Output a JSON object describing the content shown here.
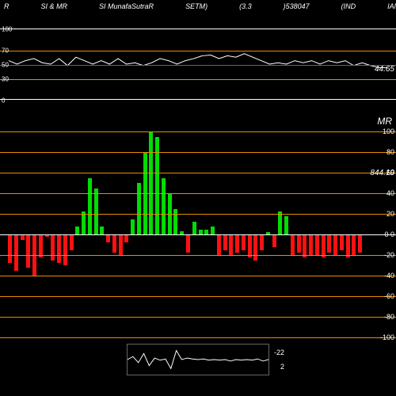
{
  "header": {
    "items": [
      "R",
      "SI & MR",
      "SI MunafaSutraR",
      "SETM)",
      "(3.3",
      ")538047",
      "(IND",
      "IAN"
    ]
  },
  "rsi": {
    "grid_color": "#e78c00",
    "levels": [
      100,
      70,
      50,
      30,
      0
    ],
    "last_label": "44.65",
    "line_color": "#ffffff",
    "points": [
      55,
      50,
      55,
      58,
      52,
      50,
      58,
      48,
      60,
      55,
      50,
      55,
      50,
      58,
      50,
      52,
      48,
      52,
      58,
      55,
      50,
      55,
      58,
      62,
      63,
      58,
      62,
      60,
      65,
      60,
      55,
      50,
      52,
      50,
      55,
      52,
      55,
      50,
      55,
      52,
      55,
      48,
      52,
      48,
      45,
      45
    ]
  },
  "mr": {
    "title": "MR",
    "grid_color": "#e78c00",
    "zero_color": "#ffffff",
    "levels": [
      100,
      80,
      60,
      40,
      20,
      0,
      -20,
      -40,
      -60,
      -80,
      -100
    ],
    "value_label": "844.19",
    "pos_color": "#00dd00",
    "neg_color": "#ff1111",
    "bars": [
      -28,
      -35,
      -5,
      -32,
      -40,
      -22,
      -2,
      -25,
      -28,
      -30,
      -15,
      8,
      22,
      55,
      45,
      8,
      -8,
      -18,
      -20,
      -8,
      15,
      50,
      80,
      100,
      95,
      55,
      40,
      25,
      3,
      -18,
      12,
      5,
      5,
      8,
      -20,
      -15,
      -20,
      -18,
      -15,
      -22,
      -25,
      -15,
      2,
      -12,
      22,
      18,
      -20,
      -18,
      -22,
      -20,
      -20,
      -22,
      -18,
      -20,
      -15,
      -22,
      -20,
      -18
    ]
  },
  "mini": {
    "line_color": "#ffffff",
    "label1": "-22",
    "label2": "2",
    "points": [
      0.5,
      0.6,
      0.4,
      0.7,
      0.3,
      0.55,
      0.48,
      0.52,
      0.2,
      0.8,
      0.5,
      0.55,
      0.52,
      0.5,
      0.52,
      0.48,
      0.5,
      0.48,
      0.5,
      0.45,
      0.5,
      0.48,
      0.5,
      0.48,
      0.52,
      0.45,
      0.5
    ]
  }
}
